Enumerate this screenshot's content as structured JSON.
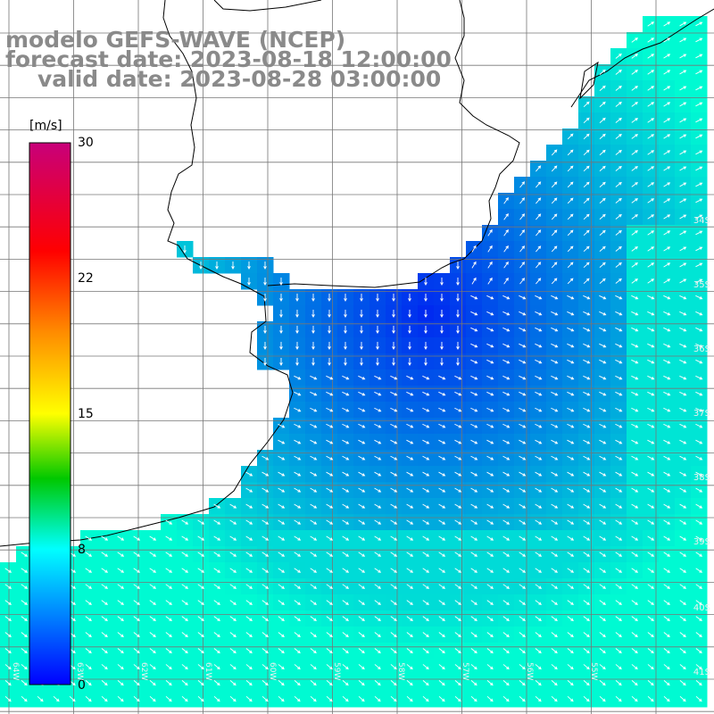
{
  "title": {
    "line1": "modelo GEFS-WAVE (NCEP)",
    "line2": "forecast date: 2023-08-18 12:00:00",
    "line3": "valid date: 2023-08-28 03:00:00"
  },
  "colorbar": {
    "unit": "[m/s]",
    "ticks": [
      "30",
      "22",
      "15",
      "8",
      "0"
    ],
    "colors": [
      "#c8007a",
      "#ff0000",
      "#ff8c00",
      "#ffff00",
      "#00c800",
      "#00ffff",
      "#0000ff"
    ]
  },
  "lat_labels": [
    "34S",
    "35S",
    "36S",
    "37S",
    "38S",
    "39S",
    "40S",
    "41S"
  ],
  "lon_labels": [
    "64W",
    "63W",
    "62W",
    "61W",
    "60W",
    "59W",
    "58W",
    "57W",
    "56W",
    "55W"
  ],
  "colors": {
    "land": "#ffffff",
    "coast": "#000000",
    "grid": "#777777",
    "arrow": "#ffffff"
  }
}
